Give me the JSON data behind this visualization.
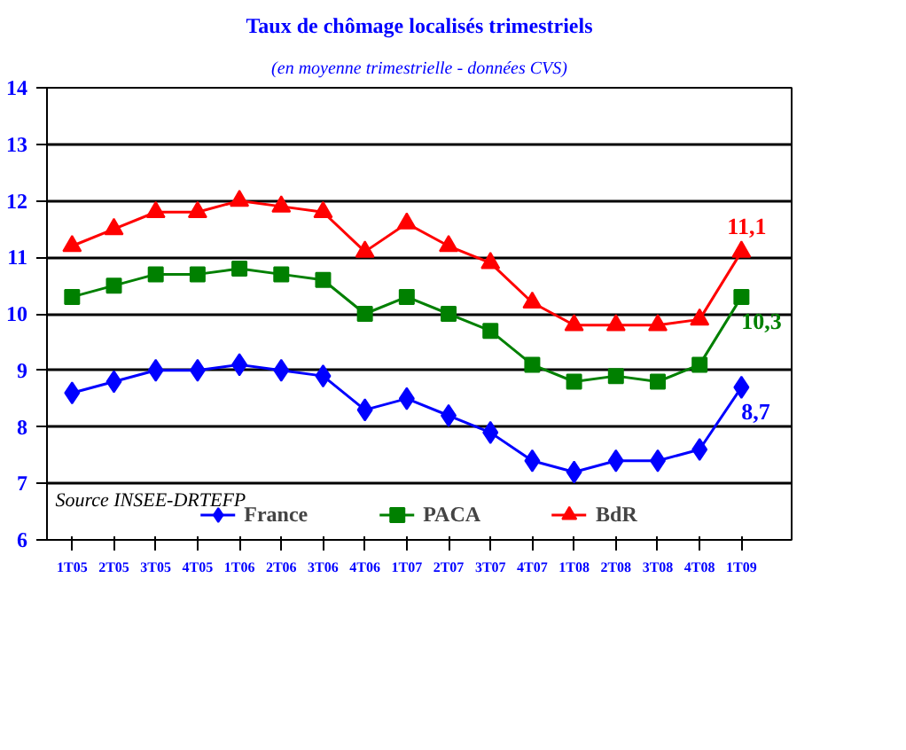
{
  "chart_data": {
    "type": "line",
    "title": "Taux de chômage localisés trimestriels",
    "subtitle": "(en moyenne trimestrielle - données CVS)",
    "categories": [
      "1T05",
      "2T05",
      "3T05",
      "4T05",
      "1T06",
      "2T06",
      "3T06",
      "4T06",
      "1T07",
      "2T07",
      "3T07",
      "4T07",
      "1T08",
      "2T08",
      "3T08",
      "4T08",
      "1T09"
    ],
    "series": [
      {
        "name": "France",
        "color": "#0000ff",
        "marker": "diamond",
        "values": [
          8.6,
          8.8,
          9.0,
          9.0,
          9.1,
          9.0,
          8.9,
          8.3,
          8.5,
          8.2,
          7.9,
          7.4,
          7.2,
          7.4,
          7.4,
          7.6,
          8.7
        ],
        "value_labels": [
          null,
          null,
          null,
          null,
          null,
          null,
          null,
          null,
          null,
          null,
          null,
          null,
          null,
          null,
          null,
          null,
          "8,7"
        ]
      },
      {
        "name": "PACA",
        "color": "#008000",
        "marker": "square",
        "values": [
          10.3,
          10.5,
          10.7,
          10.7,
          10.8,
          10.7,
          10.6,
          10.0,
          10.3,
          10.0,
          9.7,
          9.1,
          8.8,
          8.9,
          8.8,
          9.1,
          10.3
        ],
        "value_labels": [
          null,
          null,
          null,
          null,
          null,
          null,
          null,
          null,
          null,
          null,
          null,
          null,
          null,
          null,
          null,
          null,
          "10,3"
        ]
      },
      {
        "name": "BdR",
        "color": "#ff0000",
        "marker": "triangle",
        "values": [
          11.2,
          11.5,
          11.8,
          11.8,
          12.0,
          11.9,
          11.8,
          11.1,
          11.6,
          11.2,
          10.9,
          10.2,
          9.8,
          9.8,
          9.8,
          9.9,
          11.1
        ],
        "value_labels": [
          null,
          null,
          null,
          null,
          null,
          null,
          null,
          null,
          null,
          null,
          null,
          null,
          null,
          null,
          null,
          null,
          "11,1"
        ]
      }
    ],
    "ylim": [
      6,
      14
    ],
    "yticks": [
      6,
      7,
      8,
      9,
      10,
      11,
      12,
      13,
      14
    ],
    "grid": "y",
    "legend": "bottom",
    "line_style": "solid",
    "annotations": [
      "Source INSEE-DRTEFP"
    ]
  }
}
